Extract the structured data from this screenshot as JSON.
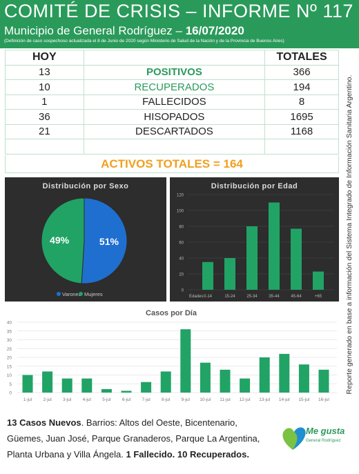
{
  "header": {
    "title": "COMITÉ DE CRISIS – INFORME Nº 117",
    "subtitle_prefix": "Municipio de General Rodríguez – ",
    "subtitle_date": "16/07/2020",
    "note": "(Definición de caso sospechoso actualizada el 8 de Junio de 2020 según Ministerio de Salud de la Nación y de la Provincia de Buenos Aires)"
  },
  "side_note": "Reporte generado en base a información del Sistema Integrado de Información Sanitaria Argentino.",
  "table": {
    "col_hoy": "HOY",
    "col_totales": "TOTALES",
    "rows": [
      {
        "hoy": "13",
        "label": "POSITIVOS",
        "total": "366"
      },
      {
        "hoy": "10",
        "label": "RECUPERADOS",
        "total": "194"
      },
      {
        "hoy": "1",
        "label": "FALLECIDOS",
        "total": "8"
      },
      {
        "hoy": "36",
        "label": "HISOPADOS",
        "total": "1695"
      },
      {
        "hoy": "21",
        "label": "DESCARTADOS",
        "total": "1168"
      }
    ],
    "activos": "ACTIVOS TOTALES = 164"
  },
  "colors": {
    "brand_green": "#2a9a5a",
    "bar_green": "#21a366",
    "pie_blue": "#1f6fd1",
    "pie_green": "#21a366",
    "activos_orange": "#f0a01e"
  },
  "chart_data": [
    {
      "type": "pie",
      "title": "Distribución por Sexo",
      "labels": [
        "Varones",
        "Mujeres"
      ],
      "values": [
        51,
        49
      ],
      "value_labels": [
        "51%",
        "49%"
      ],
      "legend": "bottom"
    },
    {
      "type": "bar",
      "title": "Distribución por Edad",
      "xlabel": "Edades",
      "categories": [
        "0-14",
        "15-24",
        "25-34",
        "35-44",
        "45-64",
        "+65"
      ],
      "values": [
        35,
        40,
        80,
        110,
        77,
        23
      ],
      "ylim": [
        0,
        120
      ],
      "yticks": [
        0,
        20,
        40,
        60,
        80,
        100,
        120
      ],
      "grid": true
    },
    {
      "type": "bar",
      "title": "Casos por Día",
      "categories": [
        "1-jul",
        "2-jul",
        "3-jul",
        "4-jul",
        "5-jul",
        "6-jul",
        "7-jul",
        "8-jul",
        "9-jul",
        "10-jul",
        "11-jul",
        "12-jul",
        "13-jul",
        "14-jul",
        "15-jul",
        "16-jul"
      ],
      "values": [
        10,
        12,
        8,
        8,
        2,
        1,
        6,
        12,
        36,
        17,
        13,
        8,
        20,
        22,
        16,
        13
      ],
      "ylim": [
        0,
        40
      ],
      "yticks": [
        0,
        5,
        10,
        15,
        20,
        25,
        30,
        35,
        40
      ],
      "grid": true
    }
  ],
  "footer": {
    "nuevos": "13 Casos Nuevos",
    "barrios": ". Barrios: Altos del Oeste, Bicentenario, Güemes, Juan José, Parque Granaderos, Parque La Argentina, Planta Urbana y Villa Ángela. ",
    "fallecido": "1 Fallecido. ",
    "recuperados": "10 Recuperados."
  },
  "logo": {
    "text": "Me gusta",
    "sub": "General Rodríguez",
    "icon": "heart-map-icon"
  }
}
